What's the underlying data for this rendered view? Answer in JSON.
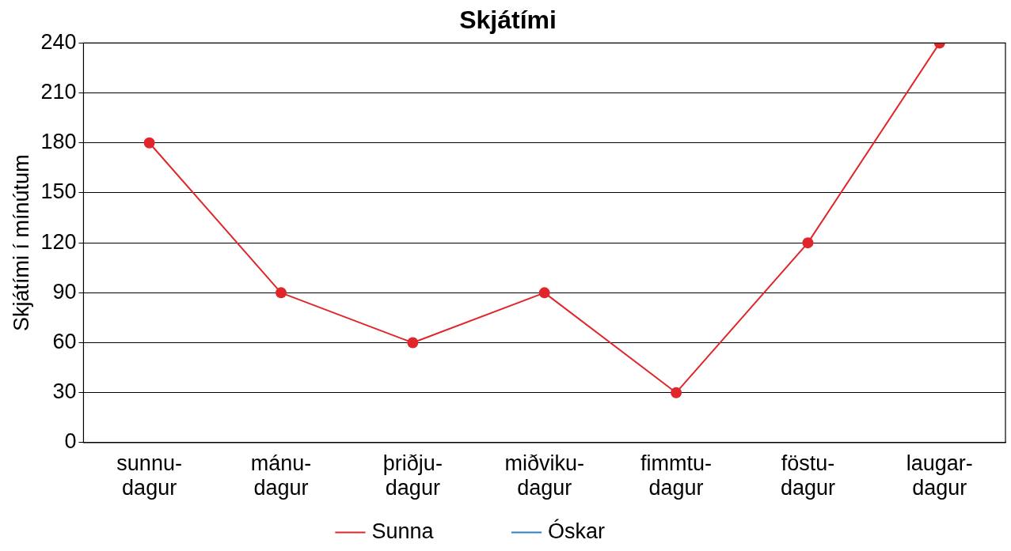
{
  "chart_data": {
    "type": "line",
    "title": "Skjátími",
    "ylabel": "Skjátími í mínútum",
    "categories": [
      "sunnu-\ndagur",
      "mánu-\ndagur",
      "þriðju-\ndagur",
      "miðviku-\ndagur",
      "fimmtu-\ndagur",
      "föstu-\ndagur",
      "laugar-\ndagur"
    ],
    "series": [
      {
        "name": "Sunna",
        "color": "#e0262a",
        "values": [
          180,
          90,
          60,
          90,
          30,
          120,
          240
        ]
      },
      {
        "name": "Óskar",
        "color": "#2f7fc1",
        "values": [
          null,
          null,
          null,
          null,
          null,
          null,
          null
        ]
      }
    ],
    "ylim": [
      0,
      240
    ],
    "yticks": [
      0,
      30,
      60,
      90,
      120,
      150,
      180,
      210,
      240
    ],
    "grid": "y",
    "legend": "bottom",
    "marker": "circle",
    "line_style": "solid"
  }
}
